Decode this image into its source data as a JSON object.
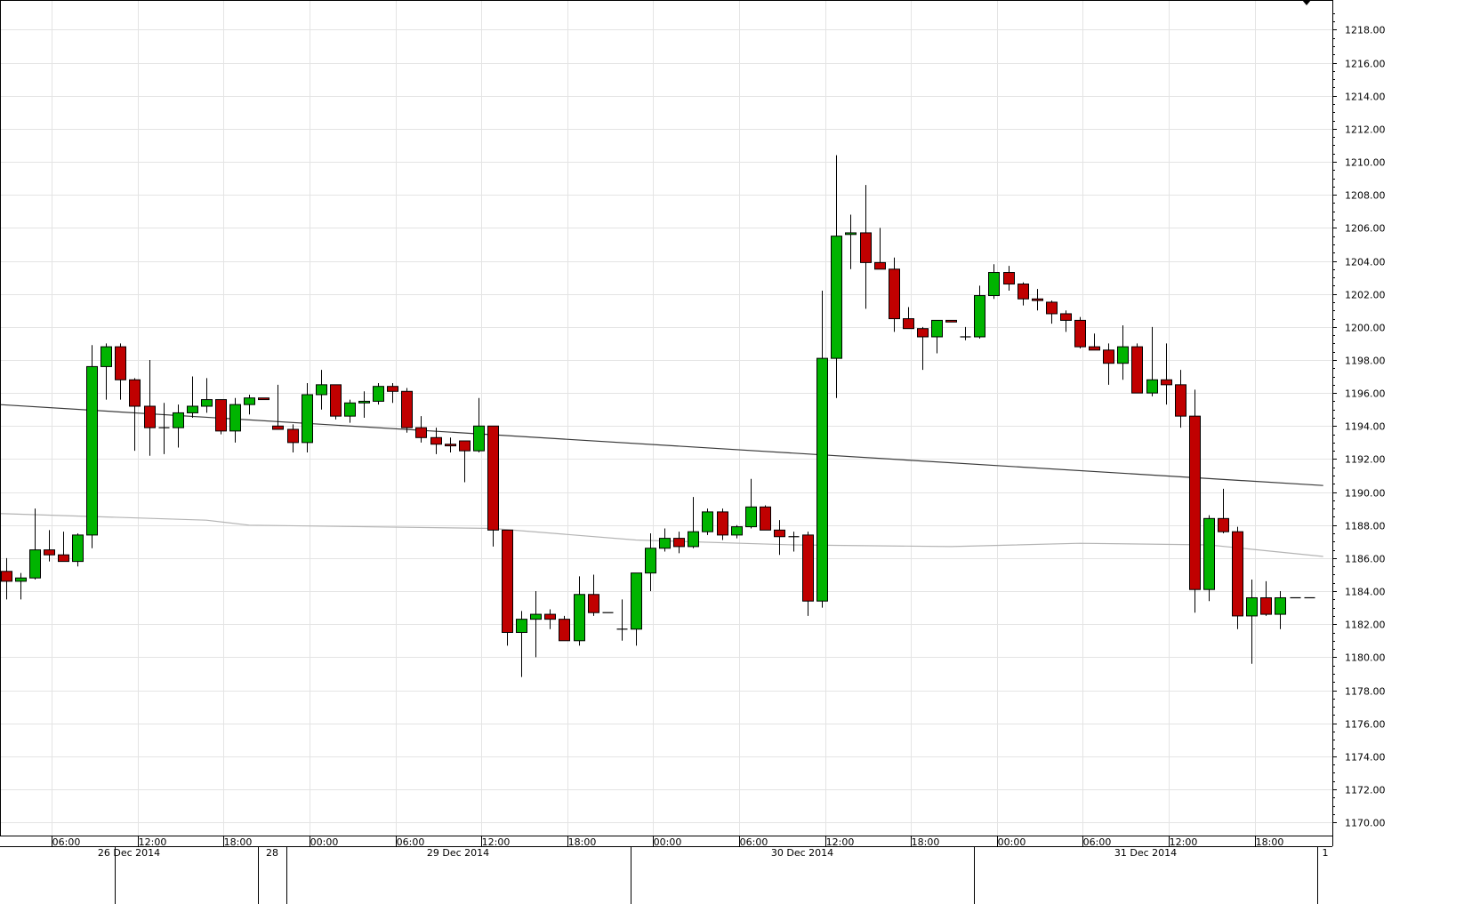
{
  "chart_data": {
    "type": "candlestick",
    "title": "",
    "xlabel": "",
    "ylabel": "",
    "ylim": [
      1169.2,
      1219.8
    ],
    "grid": true,
    "colors": {
      "up": "#00b400",
      "down": "#c00000",
      "grid": "#e4e4e4",
      "line_dark": "#3a3a3a",
      "line_light": "#b4b4b4"
    },
    "y_ticks": [
      "1170.00",
      "1172.00",
      "1174.00",
      "1176.00",
      "1178.00",
      "1180.00",
      "1182.00",
      "1184.00",
      "1186.00",
      "1188.00",
      "1190.00",
      "1192.00",
      "1194.00",
      "1196.00",
      "1198.00",
      "1200.00",
      "1202.00",
      "1204.00",
      "1206.00",
      "1208.00",
      "1210.00",
      "1212.00",
      "1214.00",
      "1216.00",
      "1218.00"
    ],
    "time_labels": [
      "06:00",
      "12:00",
      "18:00",
      "00:00",
      "06:00",
      "12:00",
      "18:00",
      "00:00",
      "06:00",
      "12:00",
      "18:00",
      "00:00",
      "06:00",
      "12:00",
      "18:00"
    ],
    "date_labels": [
      "26 Dec 2014",
      "28",
      "29 Dec 2014",
      "30 Dec 2014",
      "31 Dec 2014",
      "1"
    ],
    "candles": [
      {
        "o": 1185.2,
        "h": 1186.0,
        "l": 1183.5,
        "c": 1184.6
      },
      {
        "o": 1184.6,
        "h": 1185.1,
        "l": 1183.5,
        "c": 1184.8
      },
      {
        "o": 1184.8,
        "h": 1189.0,
        "l": 1184.7,
        "c": 1186.5
      },
      {
        "o": 1186.5,
        "h": 1187.7,
        "l": 1185.8,
        "c": 1186.2
      },
      {
        "o": 1186.2,
        "h": 1187.6,
        "l": 1185.8,
        "c": 1185.8
      },
      {
        "o": 1185.8,
        "h": 1187.5,
        "l": 1185.5,
        "c": 1187.4
      },
      {
        "o": 1187.4,
        "h": 1198.9,
        "l": 1186.6,
        "c": 1197.6
      },
      {
        "o": 1197.6,
        "h": 1199.0,
        "l": 1195.6,
        "c": 1198.8
      },
      {
        "o": 1198.8,
        "h": 1199.0,
        "l": 1195.6,
        "c": 1196.8
      },
      {
        "o": 1196.8,
        "h": 1196.9,
        "l": 1192.5,
        "c": 1195.2
      },
      {
        "o": 1195.2,
        "h": 1198.0,
        "l": 1192.2,
        "c": 1193.9
      },
      {
        "o": 1193.9,
        "h": 1195.4,
        "l": 1192.3,
        "c": 1193.9
      },
      {
        "o": 1193.9,
        "h": 1195.3,
        "l": 1192.7,
        "c": 1194.8
      },
      {
        "o": 1194.8,
        "h": 1197.0,
        "l": 1194.5,
        "c": 1195.2
      },
      {
        "o": 1195.2,
        "h": 1196.9,
        "l": 1194.8,
        "c": 1195.6
      },
      {
        "o": 1195.6,
        "h": 1195.6,
        "l": 1193.5,
        "c": 1193.7
      },
      {
        "o": 1193.7,
        "h": 1195.7,
        "l": 1193.0,
        "c": 1195.3
      },
      {
        "o": 1195.3,
        "h": 1195.9,
        "l": 1194.7,
        "c": 1195.7
      },
      {
        "o": 1195.7,
        "h": 1195.7,
        "l": 1195.6,
        "c": 1195.6
      },
      {
        "o": 1194.0,
        "h": 1196.5,
        "l": 1193.8,
        "c": 1193.8
      },
      {
        "o": 1193.8,
        "h": 1194.1,
        "l": 1192.4,
        "c": 1193.0
      },
      {
        "o": 1193.0,
        "h": 1196.6,
        "l": 1192.4,
        "c": 1195.9
      },
      {
        "o": 1195.9,
        "h": 1197.4,
        "l": 1195.0,
        "c": 1196.5
      },
      {
        "o": 1196.5,
        "h": 1196.5,
        "l": 1194.4,
        "c": 1194.6
      },
      {
        "o": 1194.6,
        "h": 1195.6,
        "l": 1194.2,
        "c": 1195.4
      },
      {
        "o": 1195.4,
        "h": 1196.1,
        "l": 1194.5,
        "c": 1195.5
      },
      {
        "o": 1195.5,
        "h": 1196.6,
        "l": 1195.3,
        "c": 1196.4
      },
      {
        "o": 1196.4,
        "h": 1196.6,
        "l": 1195.4,
        "c": 1196.1
      },
      {
        "o": 1196.1,
        "h": 1196.3,
        "l": 1193.6,
        "c": 1193.9
      },
      {
        "o": 1193.9,
        "h": 1194.6,
        "l": 1193.0,
        "c": 1193.3
      },
      {
        "o": 1193.3,
        "h": 1193.9,
        "l": 1192.3,
        "c": 1192.9
      },
      {
        "o": 1192.9,
        "h": 1193.3,
        "l": 1192.4,
        "c": 1192.8
      },
      {
        "o": 1193.1,
        "h": 1193.1,
        "l": 1190.6,
        "c": 1192.5
      },
      {
        "o": 1192.5,
        "h": 1195.7,
        "l": 1192.4,
        "c": 1194.0
      },
      {
        "o": 1194.0,
        "h": 1194.0,
        "l": 1186.7,
        "c": 1187.7
      },
      {
        "o": 1187.7,
        "h": 1187.7,
        "l": 1180.7,
        "c": 1181.5
      },
      {
        "o": 1181.5,
        "h": 1182.8,
        "l": 1178.8,
        "c": 1182.3
      },
      {
        "o": 1182.3,
        "h": 1184.0,
        "l": 1180.0,
        "c": 1182.6
      },
      {
        "o": 1182.6,
        "h": 1182.9,
        "l": 1181.7,
        "c": 1182.3
      },
      {
        "o": 1182.3,
        "h": 1182.5,
        "l": 1181.0,
        "c": 1181.0
      },
      {
        "o": 1181.0,
        "h": 1184.9,
        "l": 1180.7,
        "c": 1183.8
      },
      {
        "o": 1183.8,
        "h": 1185.0,
        "l": 1182.5,
        "c": 1182.7
      },
      {
        "o": 1182.7,
        "h": 1182.7,
        "l": 1182.7,
        "c": 1182.7
      },
      {
        "o": 1181.7,
        "h": 1183.5,
        "l": 1181.0,
        "c": 1181.7
      },
      {
        "o": 1181.7,
        "h": 1185.1,
        "l": 1180.7,
        "c": 1185.1
      },
      {
        "o": 1185.1,
        "h": 1187.5,
        "l": 1184.0,
        "c": 1186.6
      },
      {
        "o": 1186.6,
        "h": 1187.8,
        "l": 1186.4,
        "c": 1187.2
      },
      {
        "o": 1187.2,
        "h": 1187.6,
        "l": 1186.3,
        "c": 1186.7
      },
      {
        "o": 1186.7,
        "h": 1189.7,
        "l": 1186.6,
        "c": 1187.6
      },
      {
        "o": 1187.6,
        "h": 1189.0,
        "l": 1187.4,
        "c": 1188.8
      },
      {
        "o": 1188.8,
        "h": 1189.0,
        "l": 1187.1,
        "c": 1187.4
      },
      {
        "o": 1187.4,
        "h": 1188.0,
        "l": 1187.2,
        "c": 1187.9
      },
      {
        "o": 1187.9,
        "h": 1190.8,
        "l": 1187.8,
        "c": 1189.1
      },
      {
        "o": 1189.1,
        "h": 1189.2,
        "l": 1187.7,
        "c": 1187.7
      },
      {
        "o": 1187.7,
        "h": 1188.3,
        "l": 1186.2,
        "c": 1187.3
      },
      {
        "o": 1187.3,
        "h": 1187.6,
        "l": 1186.4,
        "c": 1187.3
      },
      {
        "o": 1187.4,
        "h": 1187.6,
        "l": 1182.5,
        "c": 1183.4
      },
      {
        "o": 1183.4,
        "h": 1202.2,
        "l": 1183.0,
        "c": 1198.1
      },
      {
        "o": 1198.1,
        "h": 1210.4,
        "l": 1195.7,
        "c": 1205.5
      },
      {
        "o": 1205.6,
        "h": 1206.8,
        "l": 1203.5,
        "c": 1205.7
      },
      {
        "o": 1205.7,
        "h": 1208.6,
        "l": 1201.1,
        "c": 1203.9
      },
      {
        "o": 1203.9,
        "h": 1206.0,
        "l": 1203.5,
        "c": 1203.5
      },
      {
        "o": 1203.5,
        "h": 1204.2,
        "l": 1199.7,
        "c": 1200.5
      },
      {
        "o": 1200.5,
        "h": 1201.2,
        "l": 1199.9,
        "c": 1199.9
      },
      {
        "o": 1199.9,
        "h": 1200.0,
        "l": 1197.4,
        "c": 1199.4
      },
      {
        "o": 1199.4,
        "h": 1200.4,
        "l": 1198.4,
        "c": 1200.4
      },
      {
        "o": 1200.4,
        "h": 1200.4,
        "l": 1200.3,
        "c": 1200.3
      },
      {
        "o": 1199.4,
        "h": 1200.0,
        "l": 1199.2,
        "c": 1199.4
      },
      {
        "o": 1199.4,
        "h": 1202.5,
        "l": 1199.3,
        "c": 1201.9
      },
      {
        "o": 1201.9,
        "h": 1203.8,
        "l": 1201.7,
        "c": 1203.3
      },
      {
        "o": 1203.3,
        "h": 1203.7,
        "l": 1202.2,
        "c": 1202.6
      },
      {
        "o": 1202.6,
        "h": 1202.7,
        "l": 1201.3,
        "c": 1201.7
      },
      {
        "o": 1201.7,
        "h": 1202.3,
        "l": 1201.0,
        "c": 1201.6
      },
      {
        "o": 1201.5,
        "h": 1201.6,
        "l": 1200.2,
        "c": 1200.8
      },
      {
        "o": 1200.8,
        "h": 1201.0,
        "l": 1199.7,
        "c": 1200.4
      },
      {
        "o": 1200.4,
        "h": 1200.6,
        "l": 1198.7,
        "c": 1198.8
      },
      {
        "o": 1198.8,
        "h": 1199.6,
        "l": 1198.6,
        "c": 1198.6
      },
      {
        "o": 1198.6,
        "h": 1199.0,
        "l": 1196.5,
        "c": 1197.8
      },
      {
        "o": 1197.8,
        "h": 1200.1,
        "l": 1196.8,
        "c": 1198.8
      },
      {
        "o": 1198.8,
        "h": 1199.0,
        "l": 1196.0,
        "c": 1196.0
      },
      {
        "o": 1196.0,
        "h": 1200.0,
        "l": 1195.8,
        "c": 1196.8
      },
      {
        "o": 1196.8,
        "h": 1199.0,
        "l": 1195.3,
        "c": 1196.5
      },
      {
        "o": 1196.5,
        "h": 1197.4,
        "l": 1193.9,
        "c": 1194.6
      },
      {
        "o": 1194.6,
        "h": 1196.2,
        "l": 1182.7,
        "c": 1184.1
      },
      {
        "o": 1184.1,
        "h": 1188.6,
        "l": 1183.4,
        "c": 1188.4
      },
      {
        "o": 1188.4,
        "h": 1190.2,
        "l": 1187.5,
        "c": 1187.6
      },
      {
        "o": 1187.6,
        "h": 1187.9,
        "l": 1181.7,
        "c": 1182.5
      },
      {
        "o": 1182.5,
        "h": 1184.7,
        "l": 1179.6,
        "c": 1183.6
      },
      {
        "o": 1183.6,
        "h": 1184.6,
        "l": 1182.5,
        "c": 1182.6
      },
      {
        "o": 1182.6,
        "h": 1184.0,
        "l": 1181.7,
        "c": 1183.6
      },
      {
        "o": 1183.6,
        "h": 1183.6,
        "l": 1183.6,
        "c": 1183.6
      },
      {
        "o": 1183.6,
        "h": 1183.6,
        "l": 1183.6,
        "c": 1183.6
      }
    ],
    "line_dark": [
      {
        "i": -0.5,
        "v": 1195.3
      },
      {
        "i": 92,
        "v": 1190.4
      }
    ],
    "line_light": [
      {
        "i": -0.5,
        "v": 1188.7
      },
      {
        "i": 14,
        "v": 1188.3
      },
      {
        "i": 17,
        "v": 1188.0
      },
      {
        "i": 34,
        "v": 1187.8
      },
      {
        "i": 44,
        "v": 1187.1
      },
      {
        "i": 55,
        "v": 1186.8
      },
      {
        "i": 66,
        "v": 1186.7
      },
      {
        "i": 75,
        "v": 1186.9
      },
      {
        "i": 84,
        "v": 1186.8
      },
      {
        "i": 92,
        "v": 1186.1
      }
    ]
  }
}
